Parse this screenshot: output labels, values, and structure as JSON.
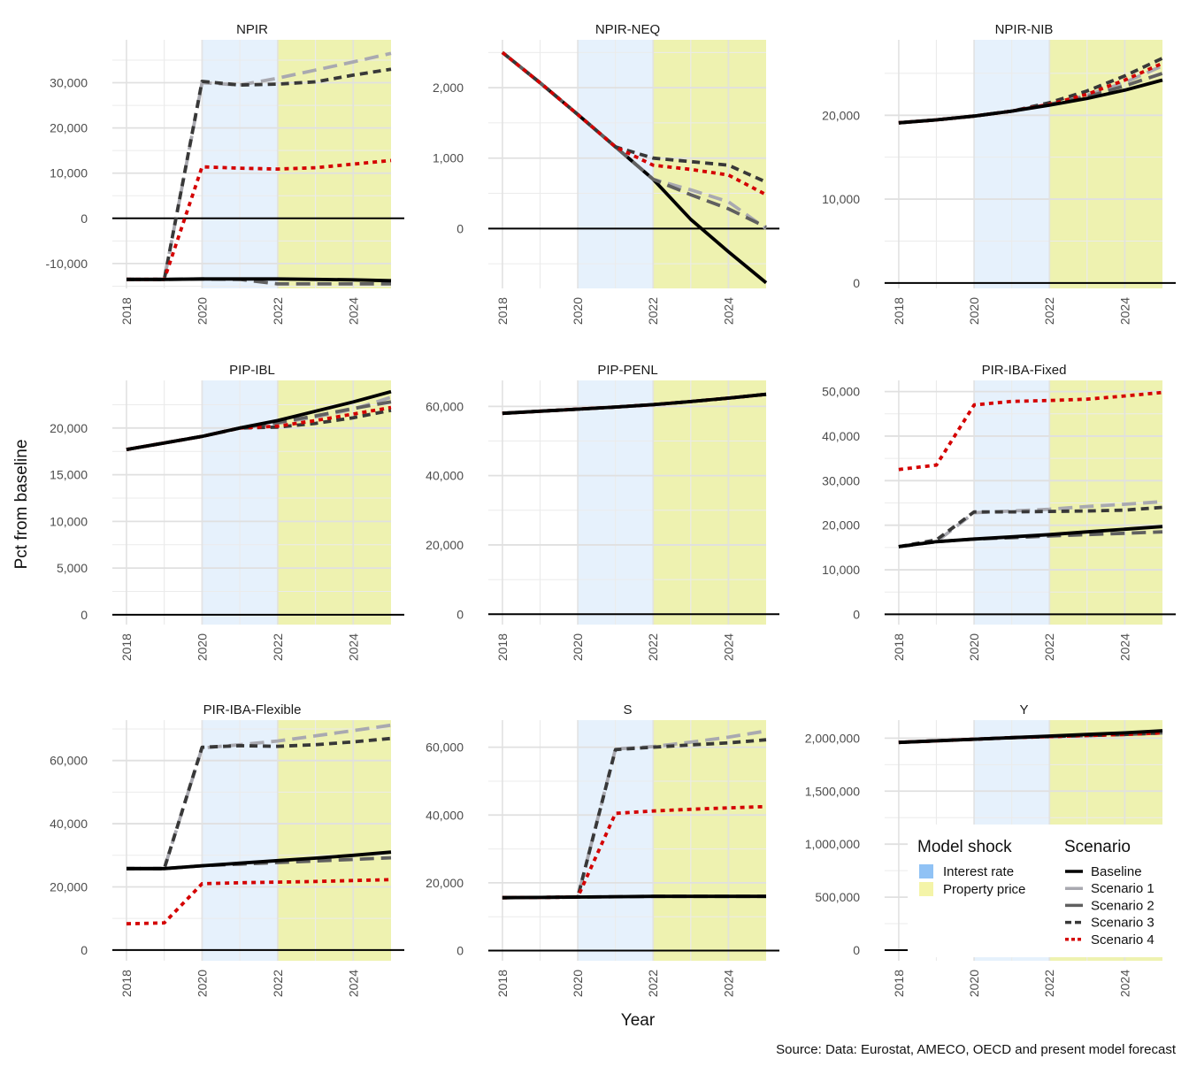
{
  "figure": {
    "ylabel": "Pct from baseline",
    "xlabel": "Year",
    "source": "Source: Data: Eurostat, AMECO, OECD and present model forecast"
  },
  "legend": {
    "shock_title": "Model shock",
    "shock_items": [
      {
        "label": "Interest rate",
        "color": "#90c2f5"
      },
      {
        "label": "Property price",
        "color": "#f4f4a8"
      }
    ],
    "scenario_title": "Scenario",
    "scenario_items": [
      {
        "label": "Baseline",
        "color": "#000000",
        "style": "solid"
      },
      {
        "label": "Scenario 1",
        "color": "#a9a9b0",
        "style": "longdash"
      },
      {
        "label": "Scenario 2",
        "color": "#606060",
        "style": "longdash"
      },
      {
        "label": "Scenario 3",
        "color": "#383838",
        "style": "dash"
      },
      {
        "label": "Scenario 4",
        "color": "#d40000",
        "style": "dot"
      }
    ]
  },
  "chart_data": [
    {
      "type": "line",
      "title": "NPIR",
      "x": [
        2018,
        2019,
        2020,
        2021,
        2022,
        2023,
        2024,
        2025
      ],
      "xticks": [
        "2018",
        "2020",
        "2022",
        "2024"
      ],
      "ylim": [
        -15500,
        39500
      ],
      "yticks": [
        -10000,
        0,
        10000,
        20000,
        30000
      ],
      "ytick_labels": [
        "-10,000",
        "0",
        "10,000",
        "20,000",
        "30,000"
      ],
      "shading": [
        {
          "shock": "Interest rate",
          "from": 2020,
          "to": 2022
        },
        {
          "shock": "Property price",
          "from": 2022,
          "to": 2025
        }
      ],
      "series": [
        {
          "name": "Baseline",
          "values": [
            -13500,
            -13500,
            -13400,
            -13400,
            -13400,
            -13500,
            -13600,
            -13800
          ]
        },
        {
          "name": "Scenario 1",
          "values": [
            -13500,
            -13500,
            30000,
            29500,
            31000,
            32800,
            34600,
            36500
          ]
        },
        {
          "name": "Scenario 2",
          "values": [
            -13500,
            -13500,
            -13400,
            -13500,
            -14500,
            -14500,
            -14500,
            -14500
          ]
        },
        {
          "name": "Scenario 3",
          "values": [
            -13500,
            -13500,
            30300,
            29500,
            29700,
            30200,
            31700,
            33000
          ]
        },
        {
          "name": "Scenario 4",
          "values": [
            -13500,
            -13500,
            11400,
            11100,
            10900,
            11200,
            12000,
            12800
          ]
        }
      ]
    },
    {
      "type": "line",
      "title": "NPIR-NEQ",
      "x": [
        2018,
        2019,
        2020,
        2021,
        2022,
        2023,
        2024,
        2025
      ],
      "xticks": [
        "2018",
        "2020",
        "2022",
        "2024"
      ],
      "ylim": [
        -850,
        2680
      ],
      "yticks": [
        0,
        1000,
        2000
      ],
      "ytick_labels": [
        "0",
        "1,000",
        "2,000"
      ],
      "shading": [
        {
          "shock": "Interest rate",
          "from": 2020,
          "to": 2022
        },
        {
          "shock": "Property price",
          "from": 2022,
          "to": 2025
        }
      ],
      "series": [
        {
          "name": "Baseline",
          "values": [
            2500,
            2070,
            1620,
            1160,
            700,
            130,
            -330,
            -770
          ]
        },
        {
          "name": "Scenario 1",
          "values": [
            2500,
            2070,
            1620,
            1160,
            700,
            550,
            380,
            0
          ]
        },
        {
          "name": "Scenario 2",
          "values": [
            2500,
            2070,
            1620,
            1160,
            700,
            480,
            280,
            20
          ]
        },
        {
          "name": "Scenario 3",
          "values": [
            2500,
            2070,
            1620,
            1160,
            1000,
            950,
            900,
            660
          ]
        },
        {
          "name": "Scenario 4",
          "values": [
            2500,
            2070,
            1620,
            1160,
            900,
            840,
            760,
            480
          ]
        }
      ]
    },
    {
      "type": "line",
      "title": "NPIR-NIB",
      "x": [
        2018,
        2019,
        2020,
        2021,
        2022,
        2023,
        2024,
        2025
      ],
      "xticks": [
        "2018",
        "2020",
        "2022",
        "2024"
      ],
      "ylim": [
        -650,
        29000
      ],
      "yticks": [
        0,
        10000,
        20000
      ],
      "ytick_labels": [
        "0",
        "10,000",
        "20,000"
      ],
      "shading": [
        {
          "shock": "Interest rate",
          "from": 2020,
          "to": 2022
        },
        {
          "shock": "Property price",
          "from": 2022,
          "to": 2025
        }
      ],
      "series": [
        {
          "name": "Baseline",
          "values": [
            19100,
            19450,
            19900,
            20500,
            21200,
            22000,
            23000,
            24200
          ]
        },
        {
          "name": "Scenario 1",
          "values": [
            19100,
            19450,
            19900,
            20500,
            21300,
            22400,
            23900,
            25900
          ]
        },
        {
          "name": "Scenario 2",
          "values": [
            19100,
            19450,
            19900,
            20500,
            21300,
            22200,
            23500,
            25000
          ]
        },
        {
          "name": "Scenario 3",
          "values": [
            19100,
            19450,
            19900,
            20500,
            21500,
            22900,
            24700,
            26800
          ]
        },
        {
          "name": "Scenario 4",
          "values": [
            19100,
            19450,
            19900,
            20500,
            21300,
            22500,
            24200,
            26200
          ]
        }
      ]
    },
    {
      "type": "line",
      "title": "PIP-IBL",
      "x": [
        2018,
        2019,
        2020,
        2021,
        2022,
        2023,
        2024,
        2025
      ],
      "xticks": [
        "2018",
        "2020",
        "2022",
        "2024"
      ],
      "ylim": [
        -1050,
        25100
      ],
      "yticks": [
        0,
        5000,
        10000,
        15000,
        20000
      ],
      "ytick_labels": [
        "0",
        "5,000",
        "10,000",
        "15,000",
        "20,000"
      ],
      "shading": [
        {
          "shock": "Interest rate",
          "from": 2020,
          "to": 2022
        },
        {
          "shock": "Property price",
          "from": 2022,
          "to": 2025
        }
      ],
      "series": [
        {
          "name": "Baseline",
          "values": [
            17700,
            18400,
            19100,
            20000,
            20800,
            21800,
            22800,
            23900
          ]
        },
        {
          "name": "Scenario 1",
          "values": [
            17700,
            18400,
            19100,
            20000,
            20500,
            21200,
            22000,
            23300
          ]
        },
        {
          "name": "Scenario 2",
          "values": [
            17700,
            18400,
            19100,
            20000,
            20600,
            21300,
            22100,
            22800
          ]
        },
        {
          "name": "Scenario 3",
          "values": [
            17700,
            18400,
            19100,
            20000,
            20100,
            20500,
            21100,
            21900
          ]
        },
        {
          "name": "Scenario 4",
          "values": [
            17700,
            18400,
            19100,
            20000,
            20200,
            20800,
            21500,
            22200
          ]
        }
      ]
    },
    {
      "type": "line",
      "title": "PIP-PENL",
      "x": [
        2018,
        2019,
        2020,
        2021,
        2022,
        2023,
        2024,
        2025
      ],
      "xticks": [
        "2018",
        "2020",
        "2022",
        "2024"
      ],
      "ylim": [
        -3000,
        67500
      ],
      "yticks": [
        0,
        20000,
        40000,
        60000
      ],
      "ytick_labels": [
        "0",
        "20,000",
        "40,000",
        "60,000"
      ],
      "shading": [
        {
          "shock": "Interest rate",
          "from": 2020,
          "to": 2022
        },
        {
          "shock": "Property price",
          "from": 2022,
          "to": 2025
        }
      ],
      "series": [
        {
          "name": "Baseline",
          "values": [
            58000,
            58600,
            59200,
            59800,
            60500,
            61400,
            62400,
            63500
          ]
        },
        {
          "name": "Scenario 1",
          "values": [
            58000,
            58600,
            59200,
            59800,
            60500,
            61400,
            62400,
            63500
          ]
        },
        {
          "name": "Scenario 2",
          "values": [
            58000,
            58600,
            59200,
            59800,
            60500,
            61400,
            62400,
            63500
          ]
        },
        {
          "name": "Scenario 3",
          "values": [
            58000,
            58600,
            59200,
            59800,
            60500,
            61400,
            62400,
            63500
          ]
        },
        {
          "name": "Scenario 4",
          "values": [
            58000,
            58600,
            59200,
            59800,
            60500,
            61400,
            62400,
            63500
          ]
        }
      ]
    },
    {
      "type": "line",
      "title": "PIR-IBA-Fixed",
      "x": [
        2018,
        2019,
        2020,
        2021,
        2022,
        2023,
        2024,
        2025
      ],
      "xticks": [
        "2018",
        "2020",
        "2022",
        "2024"
      ],
      "ylim": [
        -2300,
        52500
      ],
      "yticks": [
        0,
        10000,
        20000,
        30000,
        40000,
        50000
      ],
      "ytick_labels": [
        "0",
        "10,000",
        "20,000",
        "30,000",
        "40,000",
        "50,000"
      ],
      "shading": [
        {
          "shock": "Interest rate",
          "from": 2020,
          "to": 2022
        },
        {
          "shock": "Property price",
          "from": 2022,
          "to": 2025
        }
      ],
      "series": [
        {
          "name": "Baseline",
          "values": [
            15200,
            16300,
            16900,
            17400,
            17900,
            18500,
            19100,
            19700
          ]
        },
        {
          "name": "Scenario 1",
          "values": [
            15200,
            16300,
            22800,
            23200,
            23600,
            24200,
            24700,
            25300
          ]
        },
        {
          "name": "Scenario 2",
          "values": [
            15200,
            16300,
            16900,
            17200,
            17600,
            17900,
            18200,
            18500
          ]
        },
        {
          "name": "Scenario 3",
          "values": [
            15200,
            16700,
            23000,
            23000,
            23100,
            23200,
            23400,
            24000
          ]
        },
        {
          "name": "Scenario 4",
          "values": [
            32500,
            33500,
            47000,
            47800,
            48000,
            48300,
            49000,
            49800
          ]
        }
      ]
    },
    {
      "type": "line",
      "title": "PIR-IBA-Flexible",
      "x": [
        2018,
        2019,
        2020,
        2021,
        2022,
        2023,
        2024,
        2025
      ],
      "xticks": [
        "2018",
        "2020",
        "2022",
        "2024"
      ],
      "ylim": [
        -3400,
        72800
      ],
      "yticks": [
        0,
        20000,
        40000,
        60000
      ],
      "ytick_labels": [
        "0",
        "20,000",
        "40,000",
        "60,000"
      ],
      "shading": [
        {
          "shock": "Interest rate",
          "from": 2020,
          "to": 2022
        },
        {
          "shock": "Property price",
          "from": 2022,
          "to": 2025
        }
      ],
      "series": [
        {
          "name": "Baseline",
          "values": [
            25800,
            25800,
            26700,
            27500,
            28300,
            29100,
            30000,
            31000
          ]
        },
        {
          "name": "Scenario 1",
          "values": [
            25800,
            25800,
            64000,
            65000,
            66200,
            67800,
            69500,
            71200
          ]
        },
        {
          "name": "Scenario 2",
          "values": [
            25800,
            25800,
            26700,
            27200,
            27700,
            28200,
            28700,
            29200
          ]
        },
        {
          "name": "Scenario 3",
          "values": [
            25800,
            25800,
            64200,
            64700,
            64500,
            65000,
            65900,
            67000
          ]
        },
        {
          "name": "Scenario 4",
          "values": [
            8300,
            8600,
            21000,
            21300,
            21500,
            21700,
            22000,
            22300
          ]
        }
      ]
    },
    {
      "type": "line",
      "title": "S",
      "x": [
        2018,
        2019,
        2020,
        2021,
        2022,
        2023,
        2024,
        2025
      ],
      "xticks": [
        "2018",
        "2020",
        "2022",
        "2024"
      ],
      "ylim": [
        -3000,
        68000
      ],
      "yticks": [
        0,
        20000,
        40000,
        60000
      ],
      "ytick_labels": [
        "0",
        "20,000",
        "40,000",
        "60,000"
      ],
      "shading": [
        {
          "shock": "Interest rate",
          "from": 2020,
          "to": 2022
        },
        {
          "shock": "Property price",
          "from": 2022,
          "to": 2025
        }
      ],
      "series": [
        {
          "name": "Baseline",
          "values": [
            15600,
            15700,
            15800,
            15900,
            16000,
            16000,
            16000,
            16000
          ]
        },
        {
          "name": "Scenario 1",
          "values": [
            15600,
            15700,
            15800,
            59500,
            60200,
            61500,
            63000,
            64800
          ]
        },
        {
          "name": "Scenario 2",
          "values": [
            15600,
            15700,
            15800,
            15900,
            16000,
            16000,
            16000,
            16000
          ]
        },
        {
          "name": "Scenario 3",
          "values": [
            15600,
            15700,
            15800,
            59300,
            60000,
            60700,
            61300,
            62200
          ]
        },
        {
          "name": "Scenario 4",
          "values": [
            15600,
            15700,
            15800,
            40500,
            41200,
            41700,
            42100,
            42500
          ]
        }
      ]
    },
    {
      "type": "line",
      "title": "Y",
      "x": [
        2018,
        2019,
        2020,
        2021,
        2022,
        2023,
        2024,
        2025
      ],
      "xticks": [
        "2018",
        "2020",
        "2022",
        "2024"
      ],
      "ylim": [
        -100000,
        2170000
      ],
      "yticks": [
        0,
        500000,
        1000000,
        1500000,
        2000000
      ],
      "ytick_labels": [
        "0",
        "500,000",
        "1,000,000",
        "1,500,000",
        "2,000,000"
      ],
      "shading": [
        {
          "shock": "Interest rate",
          "from": 2020,
          "to": 2022
        },
        {
          "shock": "Property price",
          "from": 2022,
          "to": 2025
        }
      ],
      "series": [
        {
          "name": "Baseline",
          "values": [
            1960000,
            1975000,
            1990000,
            2005000,
            2020000,
            2035000,
            2050000,
            2070000
          ]
        },
        {
          "name": "Scenario 1",
          "values": [
            1960000,
            1975000,
            1990000,
            2005000,
            2015000,
            2025000,
            2035000,
            2050000
          ]
        },
        {
          "name": "Scenario 2",
          "values": [
            1960000,
            1975000,
            1990000,
            2005000,
            2015000,
            2025000,
            2035000,
            2050000
          ]
        },
        {
          "name": "Scenario 3",
          "values": [
            1960000,
            1975000,
            1990000,
            2005000,
            2015000,
            2025000,
            2035000,
            2050000
          ]
        },
        {
          "name": "Scenario 4",
          "values": [
            1960000,
            1975000,
            1990000,
            2005000,
            2015000,
            2025000,
            2035000,
            2050000
          ]
        }
      ]
    }
  ]
}
